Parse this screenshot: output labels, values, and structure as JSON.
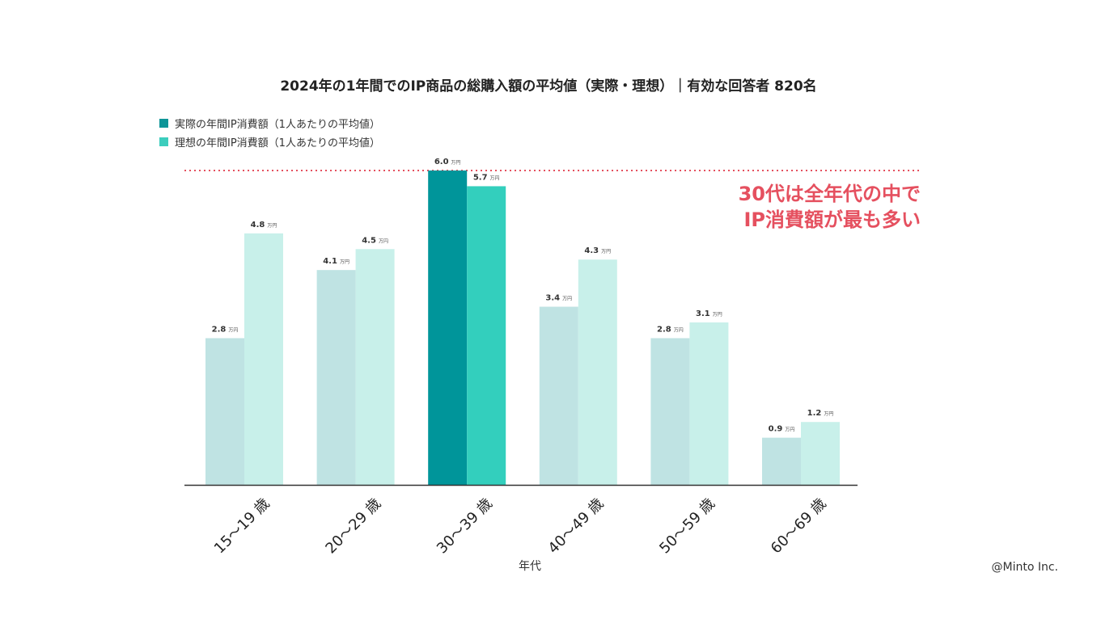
{
  "chart_data": {
    "type": "bar",
    "title": "2024年の1年間でのIP商品の総購入額の平均値（実際・理想）｜有効な回答者 820名",
    "xlabel": "年代",
    "ylabel": "",
    "unit": "万円",
    "ylim": [
      0,
      6.0
    ],
    "grid": false,
    "legend_position": "top-left",
    "categories": [
      "15～19 歳",
      "20～29 歳",
      "30～39 歳",
      "40～49 歳",
      "50～59 歳",
      "60～69 歳"
    ],
    "series": [
      {
        "name": "実際の年間IP消費額（1人あたりの平均値）",
        "values": [
          2.8,
          4.1,
          6.0,
          3.4,
          2.8,
          0.9
        ],
        "labels": [
          "2.8",
          "4.1",
          "6.0",
          "3.4",
          "2.8",
          "0.9"
        ]
      },
      {
        "name": "理想の年間IP消費額（1人あたりの平均値）",
        "values": [
          4.8,
          4.5,
          5.7,
          4.3,
          3.1,
          1.2
        ],
        "labels": [
          "4.8",
          "4.5",
          "5.7",
          "4.3",
          "3.1",
          "1.2"
        ]
      }
    ],
    "highlight_category_index": 2,
    "reference_line_value": 6.0,
    "annotation": [
      "30代は全年代の中で",
      "IP消費額が最も多い"
    ]
  },
  "colors": {
    "actual": "#bfe3e3",
    "ideal": "#c8f0ea",
    "actual_highlight": "#00959a",
    "ideal_highlight": "#33cfbd",
    "legend_actual": "#0e9598",
    "legend_ideal": "#3ccdbd",
    "reference_line": "#e5505f",
    "annotation": "#e5505f",
    "axis": "#333333"
  },
  "credit": "@Minto Inc."
}
